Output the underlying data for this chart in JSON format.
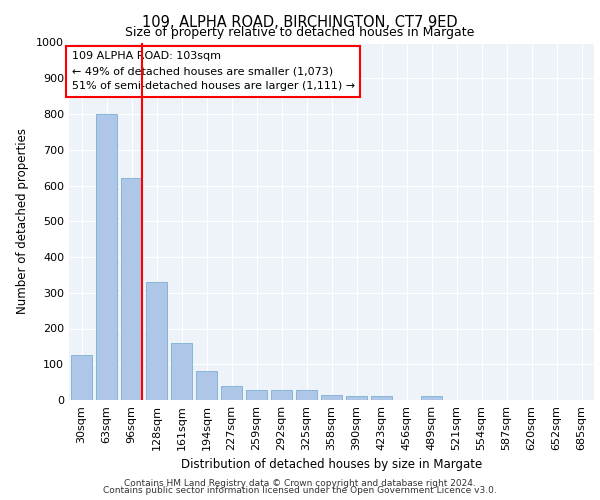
{
  "title1": "109, ALPHA ROAD, BIRCHINGTON, CT7 9ED",
  "title2": "Size of property relative to detached houses in Margate",
  "xlabel": "Distribution of detached houses by size in Margate",
  "ylabel": "Number of detached properties",
  "categories": [
    "30sqm",
    "63sqm",
    "96sqm",
    "128sqm",
    "161sqm",
    "194sqm",
    "227sqm",
    "259sqm",
    "292sqm",
    "325sqm",
    "358sqm",
    "390sqm",
    "423sqm",
    "456sqm",
    "489sqm",
    "521sqm",
    "554sqm",
    "587sqm",
    "620sqm",
    "652sqm",
    "685sqm"
  ],
  "values": [
    125,
    800,
    620,
    330,
    160,
    80,
    40,
    28,
    27,
    27,
    15,
    10,
    10,
    0,
    10,
    0,
    0,
    0,
    0,
    0,
    0
  ],
  "bar_color": "#aec6e8",
  "bar_edge_color": "#7aafd4",
  "annotation_title": "109 ALPHA ROAD: 103sqm",
  "annotation_line1": "← 49% of detached houses are smaller (1,073)",
  "annotation_line2": "51% of semi-detached houses are larger (1,111) →",
  "ylim": [
    0,
    1000
  ],
  "yticks": [
    0,
    100,
    200,
    300,
    400,
    500,
    600,
    700,
    800,
    900,
    1000
  ],
  "background_color": "#eef2f9",
  "footer1": "Contains HM Land Registry data © Crown copyright and database right 2024.",
  "footer2": "Contains public sector information licensed under the Open Government Licence v3.0.",
  "title1_fontsize": 10.5,
  "title2_fontsize": 9.0,
  "footer_fontsize": 6.5,
  "ylabel_fontsize": 8.5,
  "xlabel_fontsize": 8.5,
  "tick_fontsize": 8.0,
  "annot_fontsize": 8.0
}
